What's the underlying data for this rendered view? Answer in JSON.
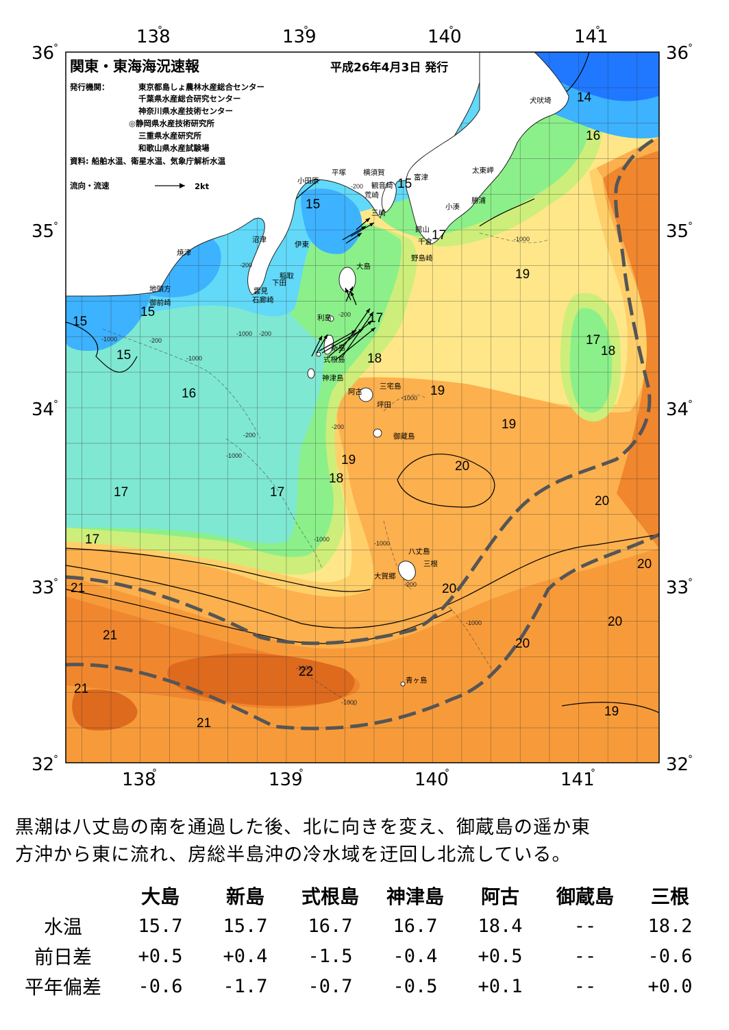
{
  "header": {
    "title": "関東・東海海況速報",
    "issue_date": "平成26年4月3日 発行",
    "publisher_label": "発行機関：",
    "publishers": [
      "東京都島しょ農林水産総合センター",
      "千葉県水産総合研究センター",
      "神奈川県水産技術センター",
      "◎静岡県水産技術研究所",
      "三重県水産研究所",
      "和歌山県水産試験場"
    ],
    "source": "資料: 船舶水温、衛星水温、気象庁解析水温",
    "current_legend_label": "流向・流速",
    "current_legend_speed": "2kt"
  },
  "axes": {
    "lon_labels": [
      "138",
      "139",
      "140",
      "141"
    ],
    "lat_labels": [
      "36",
      "35",
      "34",
      "33",
      "32"
    ],
    "degree_symbol": "°"
  },
  "places": [
    {
      "name": "犬吠埼"
    },
    {
      "name": "太東岬"
    },
    {
      "name": "勝浦"
    },
    {
      "name": "小湊"
    },
    {
      "name": "富津"
    },
    {
      "name": "館山"
    },
    {
      "name": "千倉"
    },
    {
      "name": "野島崎"
    },
    {
      "name": "平塚"
    },
    {
      "name": "横須賀"
    },
    {
      "name": "観音崎"
    },
    {
      "name": "荒崎"
    },
    {
      "name": "三崎"
    },
    {
      "name": "小田原"
    },
    {
      "name": "沼津"
    },
    {
      "name": "伊東"
    },
    {
      "name": "稲取"
    },
    {
      "name": "下田"
    },
    {
      "name": "雲見"
    },
    {
      "name": "石廊崎"
    },
    {
      "name": "焼津"
    },
    {
      "name": "地頭方"
    },
    {
      "name": "御前崎"
    },
    {
      "name": "大島"
    },
    {
      "name": "利島"
    },
    {
      "name": "新島"
    },
    {
      "name": "式根島"
    },
    {
      "name": "神津島"
    },
    {
      "name": "三宅島"
    },
    {
      "name": "阿古"
    },
    {
      "name": "坪田"
    },
    {
      "name": "御蔵島"
    },
    {
      "name": "八丈島"
    },
    {
      "name": "三根"
    },
    {
      "name": "大賀郷"
    },
    {
      "name": "青ヶ島"
    }
  ],
  "isotherm_labels": [
    "14",
    "16",
    "15",
    "15",
    "17",
    "19",
    "17",
    "18",
    "15",
    "15",
    "15",
    "16",
    "17",
    "18",
    "19",
    "19",
    "19",
    "18",
    "20",
    "17",
    "17",
    "17",
    "21",
    "20",
    "20",
    "20",
    "20",
    "21",
    "22",
    "21",
    "21",
    "20",
    "19"
  ],
  "depth_labels": [
    "-200",
    "-200",
    "-1000",
    "-200",
    "-1000",
    "-200",
    "-1000",
    "-1000",
    "-200",
    "-1000",
    "-1000",
    "-200",
    "-1000",
    "-1000",
    "-200",
    "-1000",
    "-1000",
    "-1000",
    "-200"
  ],
  "colors": {
    "t14": "#1f78ff",
    "t15": "#3db2ff",
    "t16": "#62d9f8",
    "t17": "#7fe8d2",
    "t17b": "#8cf08a",
    "t18": "#cdee7a",
    "t19": "#ffe789",
    "t19b": "#ffd06a",
    "t20": "#fcb04e",
    "t20b": "#f79b3a",
    "t21": "#f0862e",
    "t22": "#de6a1e",
    "land": "#ffffff",
    "kuroshio_axis": "#555555"
  },
  "comment": "黒潮は八丈島の南を通過した後、北に向きを変え、御蔵島の遥か東\n方沖から東に流れ、房総半島沖の冷水域を迂回し北流している。",
  "observation_table": {
    "stations": [
      "大島",
      "新島",
      "式根島",
      "神津島",
      "阿古",
      "御蔵島",
      "三根"
    ],
    "rows": [
      {
        "label": "水温",
        "values": [
          "15.7",
          "15.7",
          "16.7",
          "16.7",
          "18.4",
          "--",
          "18.2"
        ]
      },
      {
        "label": "前日差",
        "values": [
          "+0.5",
          "+0.4",
          "-1.5",
          "-0.4",
          "+0.5",
          "--",
          "-0.6"
        ]
      },
      {
        "label": "平年偏差",
        "values": [
          "-0.6",
          "-1.7",
          "-0.7",
          "-0.5",
          "+0.1",
          "--",
          "+0.0"
        ]
      }
    ]
  }
}
